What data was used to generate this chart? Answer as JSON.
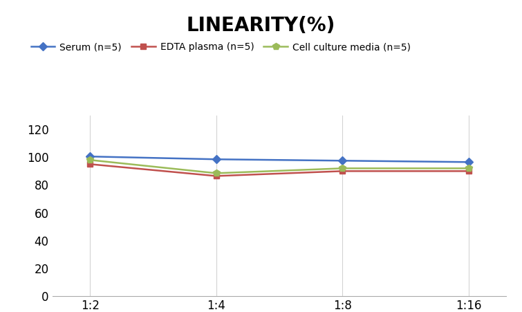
{
  "title": "LINEARITY(%)",
  "title_fontsize": 20,
  "title_fontweight": "bold",
  "x_labels": [
    "1:2",
    "1:4",
    "1:8",
    "1:16"
  ],
  "x_positions": [
    0,
    1,
    2,
    3
  ],
  "series": [
    {
      "label": "Serum (n=5)",
      "values": [
        100.5,
        98.5,
        97.5,
        96.5
      ],
      "color": "#4472C4",
      "marker": "D",
      "markersize": 6,
      "linewidth": 1.8
    },
    {
      "label": "EDTA plasma (n=5)",
      "values": [
        95.0,
        86.5,
        90.0,
        90.0
      ],
      "color": "#C0504D",
      "marker": "s",
      "markersize": 6,
      "linewidth": 1.8
    },
    {
      "label": "Cell culture media (n=5)",
      "values": [
        98.0,
        88.5,
        92.0,
        92.0
      ],
      "color": "#9BBB59",
      "marker": "p",
      "markersize": 7,
      "linewidth": 1.8
    }
  ],
  "ylim": [
    0,
    130
  ],
  "yticks": [
    0,
    20,
    40,
    60,
    80,
    100,
    120
  ],
  "grid_color": "#D3D3D3",
  "grid_linewidth": 0.8,
  "background_color": "#FFFFFF",
  "legend_fontsize": 10,
  "axis_fontsize": 12,
  "fig_width": 7.55,
  "fig_height": 4.51,
  "dpi": 100
}
